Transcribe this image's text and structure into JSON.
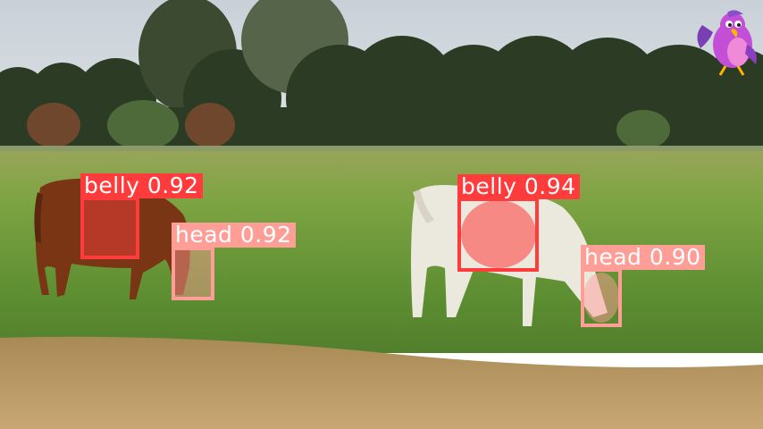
{
  "detections": [
    {
      "label": "belly 0.92",
      "class": "belly",
      "score": "0.92",
      "color": "#ff3b3b"
    },
    {
      "label": "head 0.92",
      "class": "head",
      "score": "0.92",
      "color": "#ff9d97"
    },
    {
      "label": "belly 0.94",
      "class": "belly",
      "score": "0.94",
      "color": "#ff3b3b"
    },
    {
      "label": "head 0.90",
      "class": "head",
      "score": "0.90",
      "color": "#ff9d97"
    }
  ],
  "colors": {
    "sky": "#cfd6dc",
    "grass": "#6e9a3c",
    "dry_grass": "#b99560",
    "brown_cow": "#7a3515",
    "white_cow": "#ece9df",
    "belly_box": "#ff3b3b",
    "head_box": "#ff9d97"
  },
  "icons": {
    "watermark": "purple-parrot-icon"
  }
}
